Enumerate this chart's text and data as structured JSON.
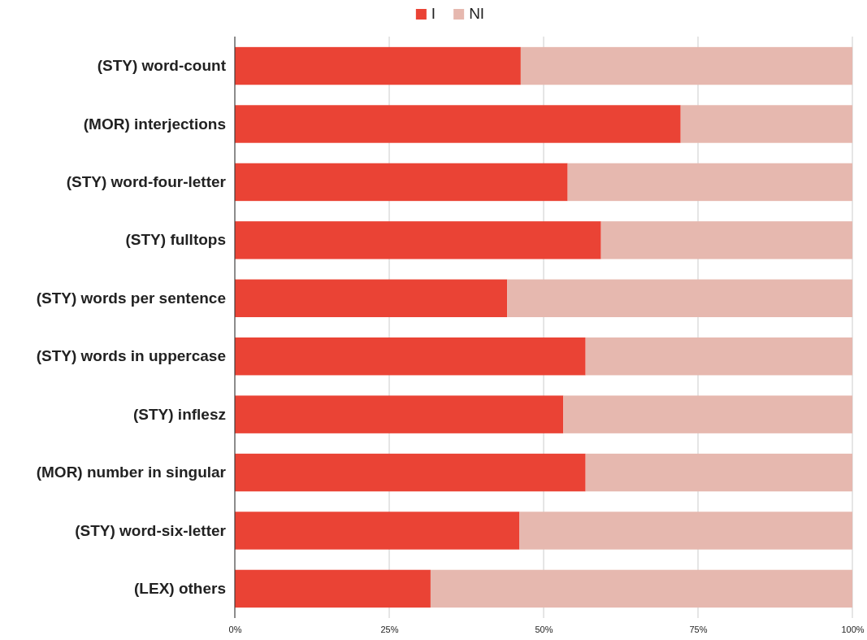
{
  "chart_data": {
    "type": "bar",
    "orientation": "horizontal",
    "stacked": true,
    "categories": [
      "(STY) word-count",
      "(MOR) interjections",
      "(STY) word-four-letter",
      "(STY) fulltops",
      "(STY) words per sentence",
      "(STY) words in uppercase",
      "(STY) inflesz",
      "(MOR) number in singular",
      "(STY) word-six-letter",
      "(LEX) others"
    ],
    "series": [
      {
        "name": "I",
        "color": "#ea4335",
        "values": [
          46.3,
          72.2,
          53.9,
          59.3,
          44.1,
          56.8,
          53.2,
          56.8,
          46.1,
          31.7
        ]
      },
      {
        "name": "NI",
        "color": "#e6b8af",
        "values": [
          53.7,
          27.8,
          46.1,
          40.7,
          55.9,
          43.2,
          46.8,
          43.2,
          53.9,
          68.3
        ]
      }
    ],
    "xlim": [
      0,
      100
    ],
    "xticks": [
      {
        "value": 0,
        "label": "0%"
      },
      {
        "value": 25,
        "label": "25%"
      },
      {
        "value": 50,
        "label": "50%"
      },
      {
        "value": 75,
        "label": "75%"
      },
      {
        "value": 100,
        "label": "100%"
      }
    ],
    "grid": "x",
    "legend": "top"
  }
}
